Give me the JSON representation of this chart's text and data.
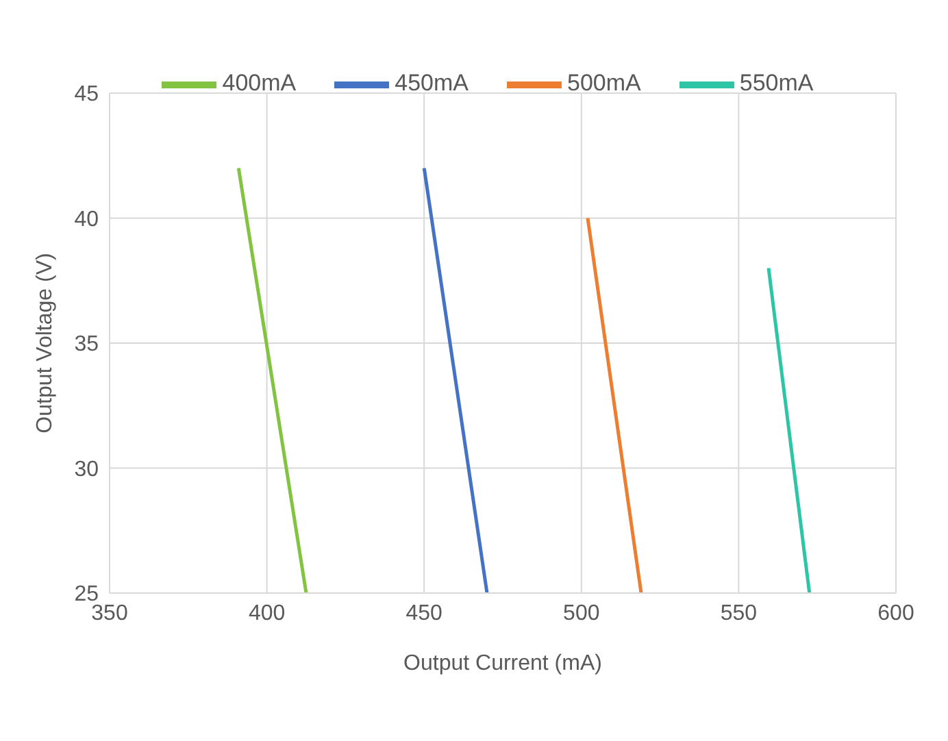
{
  "chart_data": {
    "type": "line",
    "xlabel": "Output Current (mA)",
    "ylabel": "Output Voltage (V)",
    "xlim": [
      350,
      600
    ],
    "xticks": [
      350,
      400,
      450,
      500,
      550,
      600
    ],
    "ylim": [
      25,
      45
    ],
    "yticks": [
      25,
      30,
      35,
      40,
      45
    ],
    "grid": true,
    "legend": "top",
    "marker": "none",
    "line_style": "solid",
    "series": [
      {
        "name": "400mA",
        "color": "#82c341",
        "x": [
          391,
          412.5
        ],
        "values": [
          42,
          25
        ]
      },
      {
        "name": "450mA",
        "color": "#4472c4",
        "x": [
          450,
          470
        ],
        "values": [
          42,
          25
        ]
      },
      {
        "name": "500mA",
        "color": "#ed7d31",
        "x": [
          502,
          519
        ],
        "values": [
          40,
          25
        ]
      },
      {
        "name": "550mA",
        "color": "#2ec4a6",
        "x": [
          559.5,
          572.5
        ],
        "values": [
          38,
          25
        ]
      }
    ]
  }
}
